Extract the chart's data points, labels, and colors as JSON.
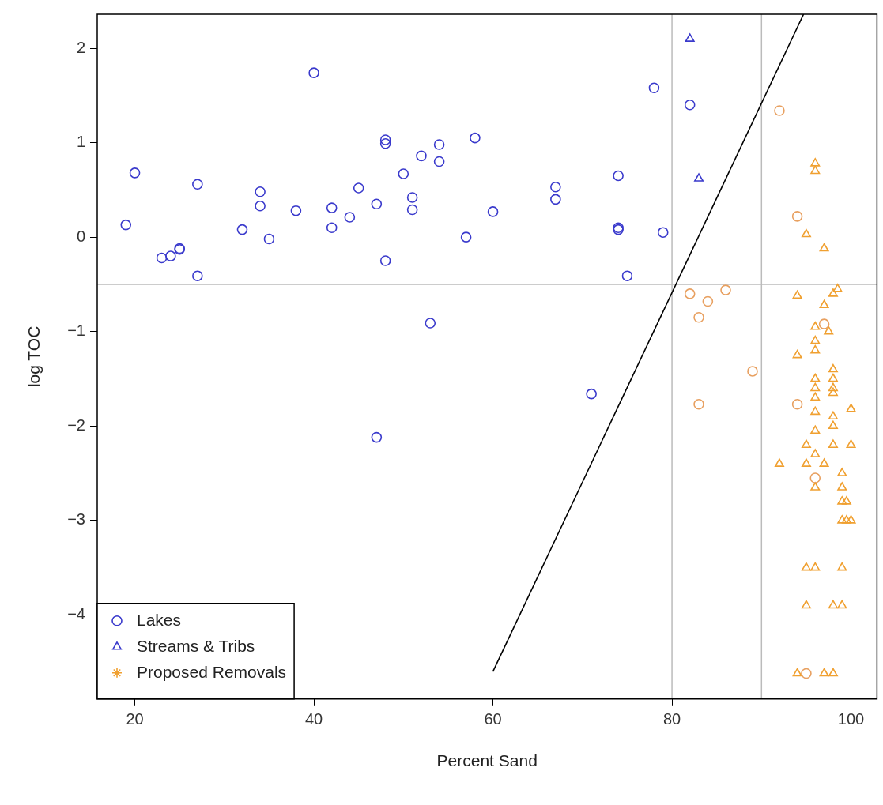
{
  "chart_data": {
    "type": "scatter",
    "xlabel": "Percent Sand",
    "ylabel": "log TOC",
    "xlim": [
      15.8,
      102.9
    ],
    "xticks": [
      20,
      40,
      60,
      80,
      100
    ],
    "ylim": [
      -4.89,
      2.36
    ],
    "yticks": [
      -4,
      -3,
      -2,
      -1,
      0,
      1,
      2
    ],
    "grid": false,
    "legend": "bottom left",
    "ref_lines": [
      {
        "axis": "x",
        "value": 80,
        "color": "#bbbbbb"
      },
      {
        "axis": "x",
        "value": 90,
        "color": "#bbbbbb"
      },
      {
        "axis": "y",
        "value": -0.5,
        "color": "#bbbbbb"
      }
    ],
    "series": [
      {
        "name": "Lakes",
        "color": "#3a3acc",
        "marker": "circle",
        "x": [
          19,
          20,
          23,
          24,
          25,
          25,
          27,
          27,
          32,
          34,
          34,
          35,
          38,
          40,
          42,
          42,
          44,
          45,
          47,
          48,
          48,
          48,
          50,
          51,
          51,
          52,
          54,
          54,
          57,
          58,
          60,
          67,
          67,
          74,
          74,
          74,
          75,
          78,
          79,
          82,
          53,
          47,
          71
        ],
        "values": [
          0.13,
          0.68,
          -0.22,
          -0.2,
          -0.13,
          -0.12,
          0.56,
          -0.41,
          0.08,
          0.48,
          0.33,
          -0.02,
          0.28,
          1.74,
          0.31,
          0.1,
          0.21,
          0.52,
          0.35,
          1.03,
          0.99,
          -0.25,
          0.67,
          0.42,
          0.29,
          0.86,
          0.98,
          0.8,
          0,
          1.05,
          0.27,
          0.53,
          0.4,
          0.65,
          0.1,
          0.08,
          -0.41,
          1.58,
          0.05,
          1.4,
          -0.91,
          -2.12,
          -1.66
        ]
      },
      {
        "name": "Streams & Tribs",
        "color": "#3a3acc",
        "marker": "triangle",
        "x": [
          82,
          83
        ],
        "values": [
          2.1,
          0.62
        ]
      },
      {
        "name": "Proposed Removals",
        "color": "#f0a030",
        "marker": "star"
      },
      {
        "color": "#e8a060",
        "marker": "circle",
        "x": [
          92,
          94,
          82,
          84,
          83,
          86,
          89,
          83,
          94,
          97,
          96,
          95
        ],
        "values": [
          1.34,
          0.22,
          -0.6,
          -0.68,
          -0.85,
          -0.56,
          -1.42,
          -1.77,
          -1.77,
          -0.92,
          -2.55,
          -4.62
        ]
      },
      {
        "color": "#f0a030",
        "marker": "triangle",
        "x": [
          96,
          96,
          95,
          97,
          94,
          98,
          98.5,
          97,
          96,
          97.5,
          96,
          96,
          94,
          96,
          98,
          98,
          96,
          98,
          96,
          98,
          96,
          98,
          98,
          100,
          96,
          95,
          98,
          100,
          92,
          95,
          97,
          96,
          99,
          99,
          96,
          99,
          99.5,
          99,
          99.5,
          100,
          95,
          96,
          99,
          95,
          98,
          99,
          94,
          97,
          98
        ],
        "values": [
          0.78,
          0.7,
          0.03,
          -0.12,
          -0.62,
          -0.6,
          -0.55,
          -0.72,
          -0.95,
          -1.0,
          -1.1,
          -1.2,
          -1.25,
          -1.5,
          -1.4,
          -1.5,
          -1.6,
          -1.6,
          -1.7,
          -1.65,
          -1.85,
          -1.9,
          -2.0,
          -1.82,
          -2.05,
          -2.2,
          -2.2,
          -2.2,
          -2.4,
          -2.4,
          -2.4,
          -2.3,
          -2.5,
          -2.65,
          -2.65,
          -2.8,
          -2.8,
          -3.0,
          -3.0,
          -3.0,
          -3.5,
          -3.5,
          -3.5,
          -3.9,
          -3.9,
          -3.9,
          -4.62,
          -4.62,
          -4.62
        ]
      },
      {
        "type": "line",
        "color": "#000000",
        "marker": "none",
        "line_style": "solid",
        "x": [
          60,
          94.7
        ],
        "values": [
          -4.6,
          2.36
        ]
      }
    ]
  }
}
